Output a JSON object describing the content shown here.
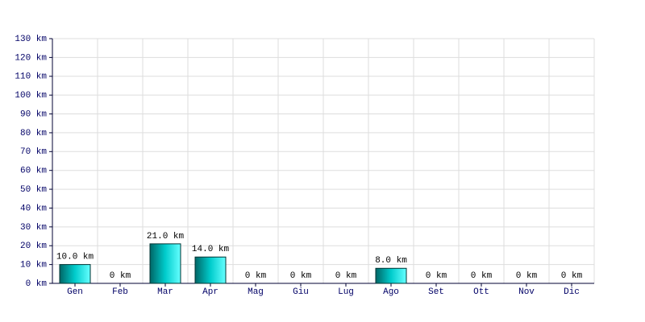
{
  "chart_data": {
    "type": "bar",
    "categories": [
      "Gen",
      "Feb",
      "Mar",
      "Apr",
      "Mag",
      "Giu",
      "Lug",
      "Ago",
      "Set",
      "Ott",
      "Nov",
      "Dic"
    ],
    "values": [
      10,
      0,
      21,
      14,
      0,
      0,
      0,
      8,
      0,
      0,
      0,
      0
    ],
    "value_labels": [
      "10.0 km",
      "0 km",
      "21.0 km",
      "14.0 km",
      "0 km",
      "0 km",
      "0 km",
      "8.0 km",
      "0 km",
      "0 km",
      "0 km",
      "0 km"
    ],
    "color": "#00cccc",
    "ylim": [
      0,
      130
    ],
    "yticks": [
      {
        "value": 0,
        "label": "0 km"
      },
      {
        "value": 10,
        "label": "10 km"
      },
      {
        "value": 20,
        "label": "20 km"
      },
      {
        "value": 30,
        "label": "30 km"
      },
      {
        "value": 40,
        "label": "40 km"
      },
      {
        "value": 50,
        "label": "50 km"
      },
      {
        "value": 60,
        "label": "60 km"
      },
      {
        "value": 70,
        "label": "70 km"
      },
      {
        "value": 80,
        "label": "80 km"
      },
      {
        "value": 90,
        "label": "90 km"
      },
      {
        "value": 100,
        "label": "100 km"
      },
      {
        "value": 110,
        "label": "110 km"
      },
      {
        "value": 120,
        "label": "120 km"
      },
      {
        "value": 130,
        "label": "130 km"
      }
    ],
    "grid": true
  }
}
